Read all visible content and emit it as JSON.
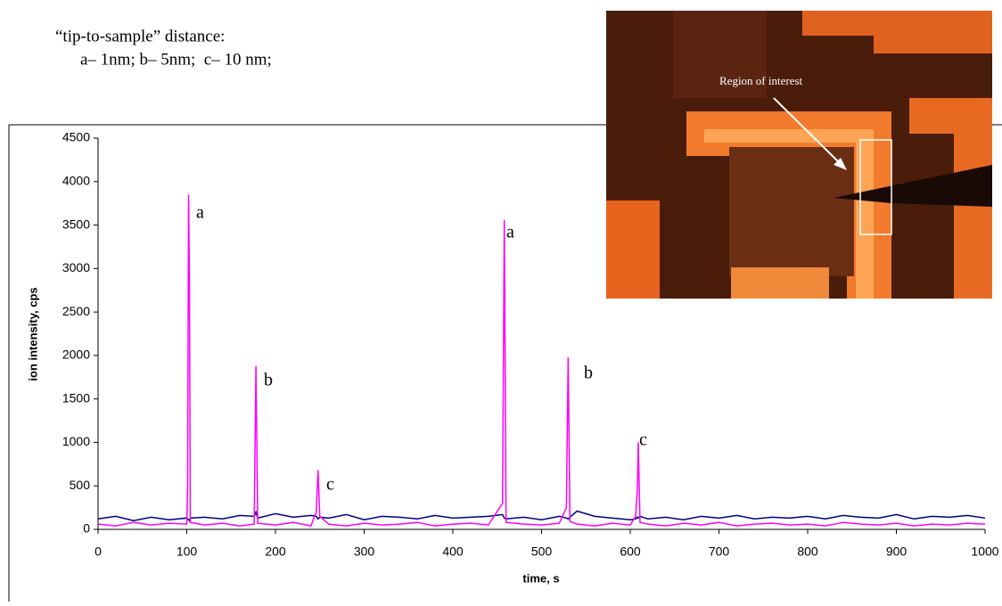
{
  "note_lines": [
    "“tip-to-sample” distance:",
    "a– 1nm; b– 5nm;  c– 10 nm;"
  ],
  "inset_label": "Region of interest",
  "chart_data": {
    "type": "line",
    "xlabel": "time, s",
    "ylabel": "ion intensity, cps",
    "xlim": [
      0,
      1000
    ],
    "ylim": [
      0,
      4500
    ],
    "xticks": [
      0,
      100,
      200,
      300,
      400,
      500,
      600,
      700,
      800,
      900,
      1000
    ],
    "yticks": [
      0,
      500,
      1000,
      1500,
      2000,
      2500,
      3000,
      3500,
      4000,
      4500
    ],
    "x": [
      0,
      20,
      40,
      60,
      80,
      100,
      101,
      102,
      103,
      104,
      120,
      140,
      160,
      176,
      178,
      180,
      200,
      220,
      240,
      246,
      248,
      250,
      260,
      280,
      300,
      320,
      340,
      360,
      380,
      400,
      420,
      440,
      456,
      458,
      460,
      480,
      500,
      520,
      528,
      530,
      532,
      540,
      560,
      580,
      600,
      606,
      608,
      609,
      611,
      620,
      640,
      660,
      680,
      700,
      720,
      740,
      760,
      780,
      800,
      820,
      840,
      860,
      880,
      900,
      920,
      940,
      960,
      980,
      1000
    ],
    "series": [
      {
        "color": "#000080",
        "values": [
          120,
          150,
          100,
          140,
          110,
          130,
          120,
          110,
          100,
          130,
          140,
          120,
          160,
          150,
          200,
          130,
          180,
          140,
          160,
          150,
          120,
          140,
          130,
          170,
          110,
          150,
          140,
          120,
          160,
          130,
          140,
          150,
          170,
          130,
          120,
          140,
          110,
          150,
          130,
          120,
          140,
          210,
          150,
          130,
          110,
          120,
          140,
          130,
          150,
          120,
          140,
          110,
          150,
          130,
          160,
          120,
          140,
          130,
          150,
          120,
          160,
          140,
          130,
          170,
          120,
          150,
          140,
          160,
          130
        ]
      },
      {
        "color": "#ff00ff",
        "values": [
          60,
          40,
          80,
          50,
          70,
          60,
          500,
          3850,
          2900,
          80,
          50,
          70,
          40,
          60,
          1880,
          70,
          50,
          80,
          40,
          200,
          680,
          150,
          60,
          40,
          70,
          50,
          60,
          80,
          40,
          60,
          70,
          50,
          300,
          3560,
          80,
          60,
          50,
          70,
          250,
          1980,
          90,
          60,
          40,
          70,
          50,
          150,
          450,
          1000,
          80,
          60,
          40,
          70,
          50,
          80,
          40,
          60,
          70,
          50,
          60,
          40,
          80,
          60,
          50,
          70,
          40,
          60,
          50,
          70,
          60
        ]
      }
    ],
    "annotations": [
      "a",
      "b",
      "c",
      "a",
      "b",
      "c"
    ]
  }
}
